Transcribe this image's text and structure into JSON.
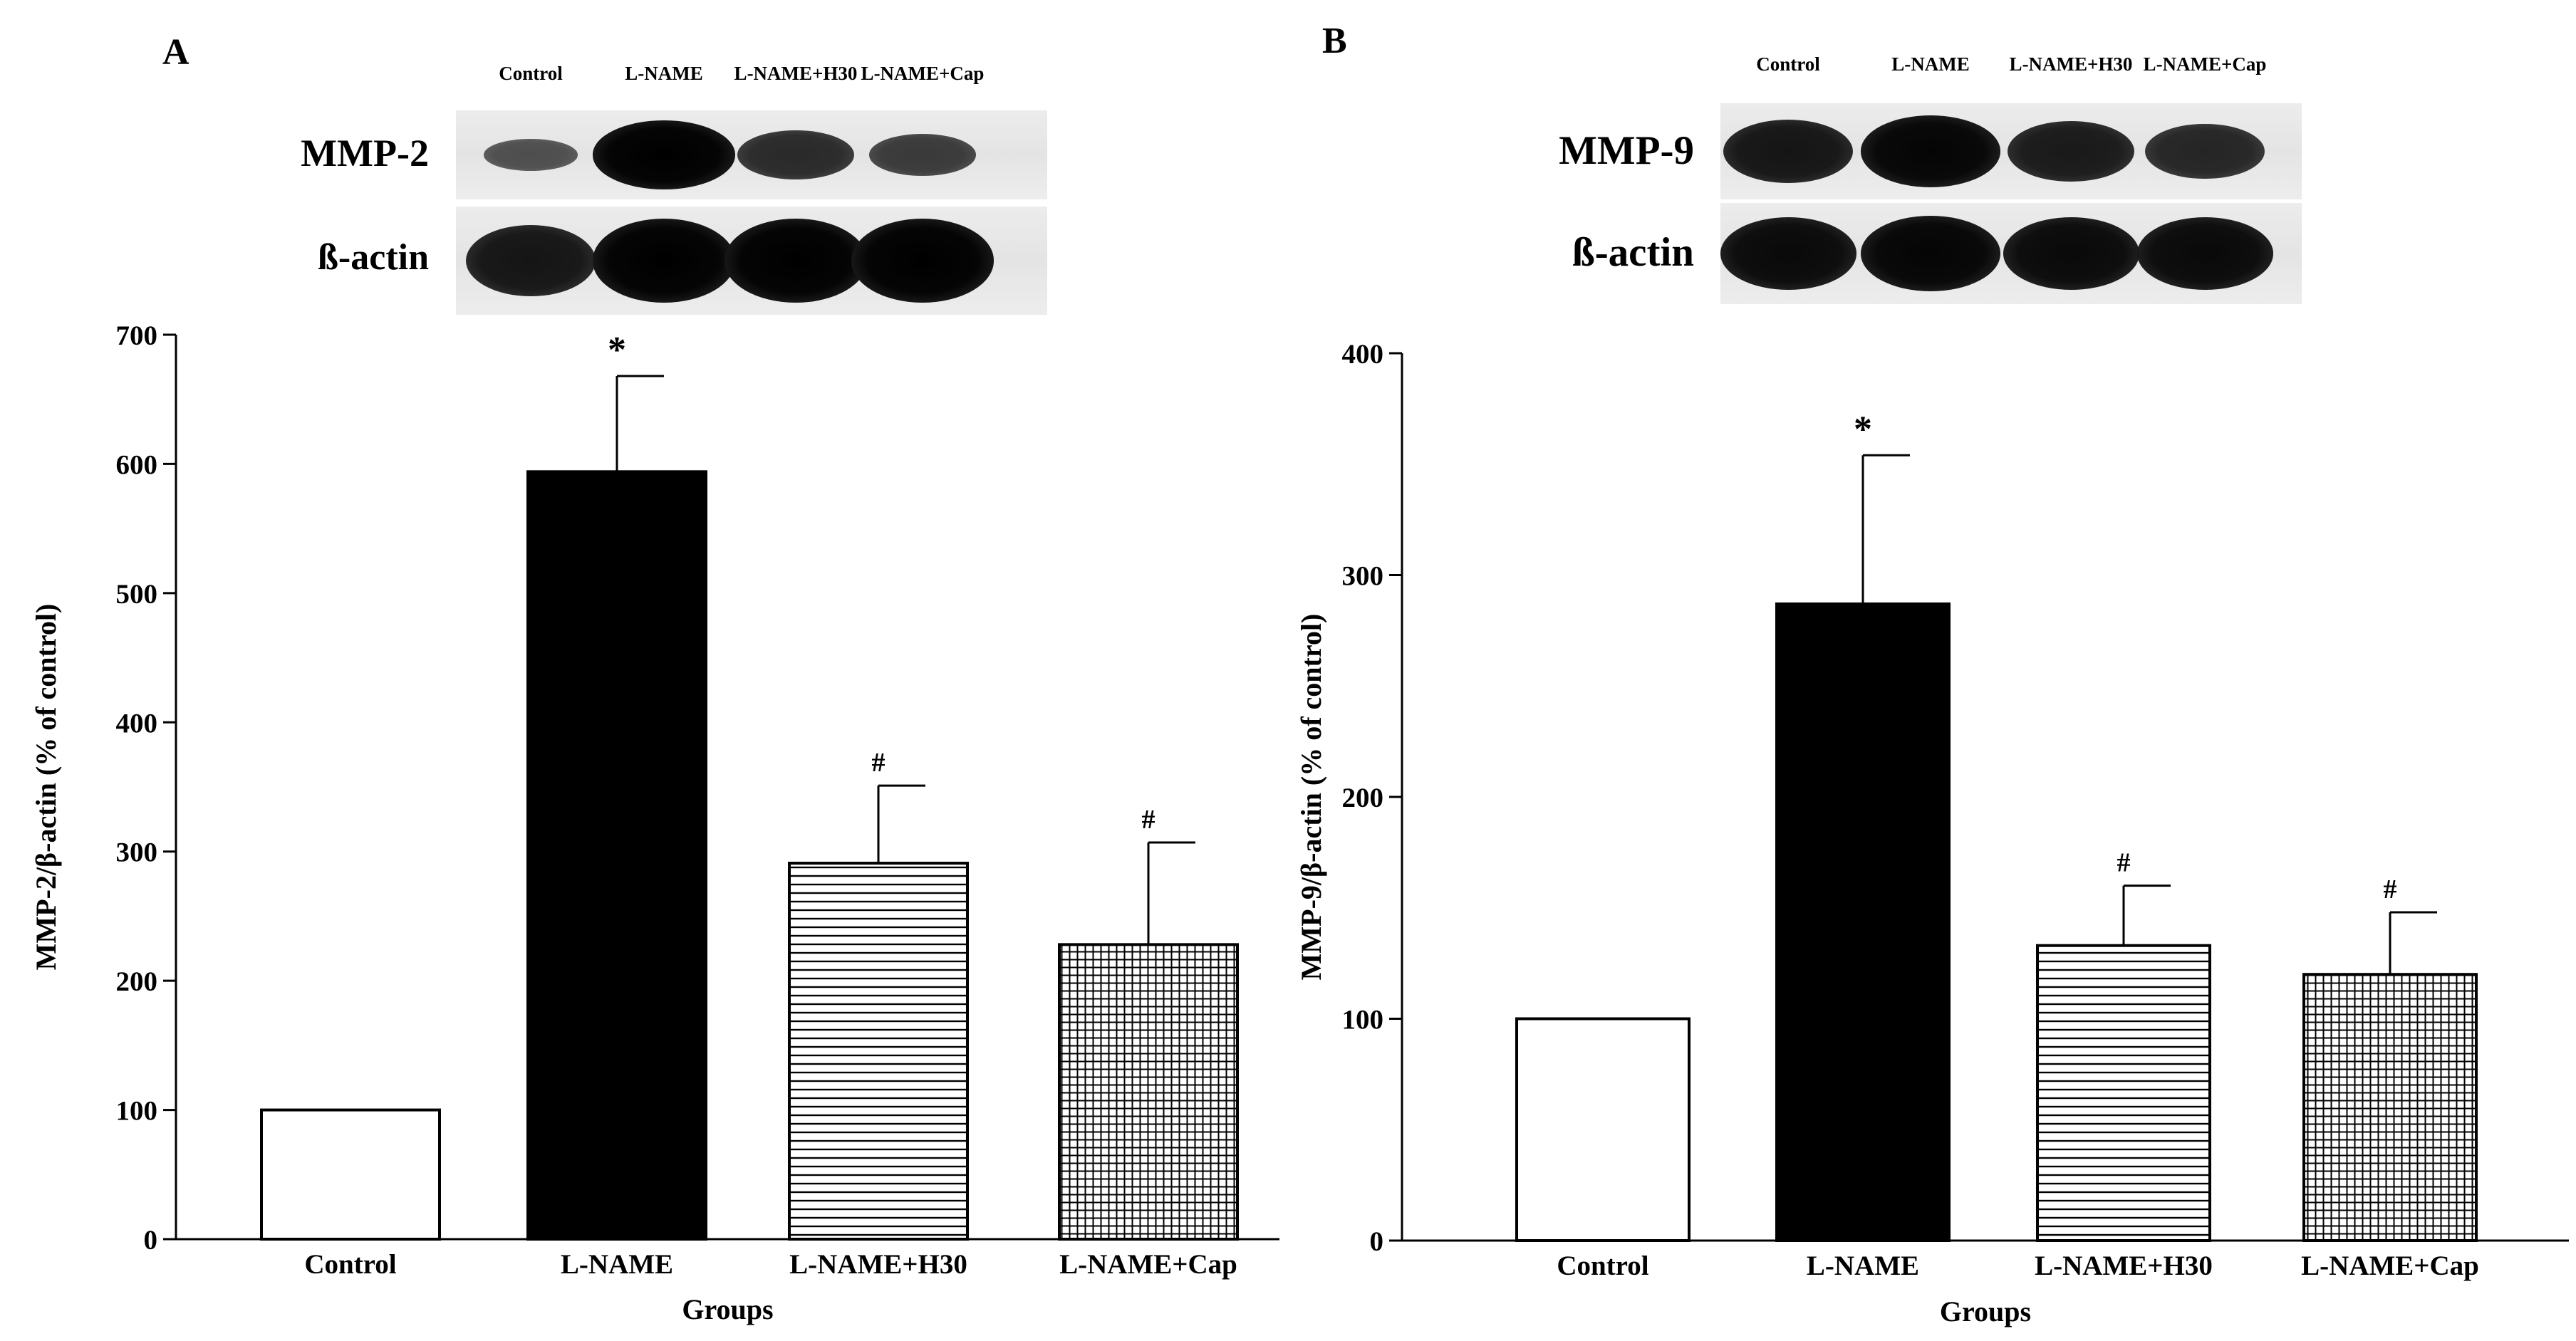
{
  "chart_data": [
    {
      "panel": "A",
      "type": "bar",
      "categories": [
        "Control",
        "L-NAME",
        "L-NAME+H30",
        "L-NAME+Cap"
      ],
      "values": [
        100,
        594,
        291,
        228
      ],
      "errors": [
        0,
        74,
        60,
        79
      ],
      "annotations": [
        "",
        "*",
        "#",
        "#"
      ],
      "patterns": [
        "white",
        "black",
        "hlines",
        "grid"
      ],
      "xlabel": "Groups",
      "ylabel": "MMP-2/β-actin (% of control)",
      "ylim": [
        0,
        700
      ],
      "yticks": [
        0,
        100,
        200,
        300,
        400,
        500,
        600,
        700
      ],
      "blot": {
        "lane_labels": [
          "Control",
          "L-NAME",
          "L-NAME+H30",
          "L-NAME+Cap"
        ],
        "rows": [
          {
            "label": "MMP-2",
            "intensity": [
              0.25,
              1.0,
              0.6,
              0.45
            ]
          },
          {
            "label": "ß-actin",
            "intensity": [
              0.8,
              1.0,
              1.0,
              1.0
            ]
          }
        ]
      }
    },
    {
      "panel": "B",
      "type": "bar",
      "categories": [
        "Control",
        "L-NAME",
        "L-NAME+H30",
        "L-NAME+Cap"
      ],
      "values": [
        100,
        287,
        133,
        120
      ],
      "errors": [
        0,
        67,
        27,
        28
      ],
      "annotations": [
        "",
        "*",
        "#",
        "#"
      ],
      "patterns": [
        "white",
        "black",
        "hlines",
        "grid"
      ],
      "xlabel": "Groups",
      "ylabel": "MMP-9/β-actin (% of control)",
      "ylim": [
        0,
        400
      ],
      "yticks": [
        0,
        100,
        200,
        300,
        400
      ],
      "blot": {
        "lane_labels": [
          "Control",
          "L-NAME",
          "L-NAME+H30",
          "L-NAME+Cap"
        ],
        "rows": [
          {
            "label": "MMP-9",
            "intensity": [
              0.8,
              0.95,
              0.75,
              0.65
            ]
          },
          {
            "label": "ß-actin",
            "intensity": [
              0.9,
              0.95,
              0.9,
              0.9
            ]
          }
        ]
      }
    }
  ]
}
